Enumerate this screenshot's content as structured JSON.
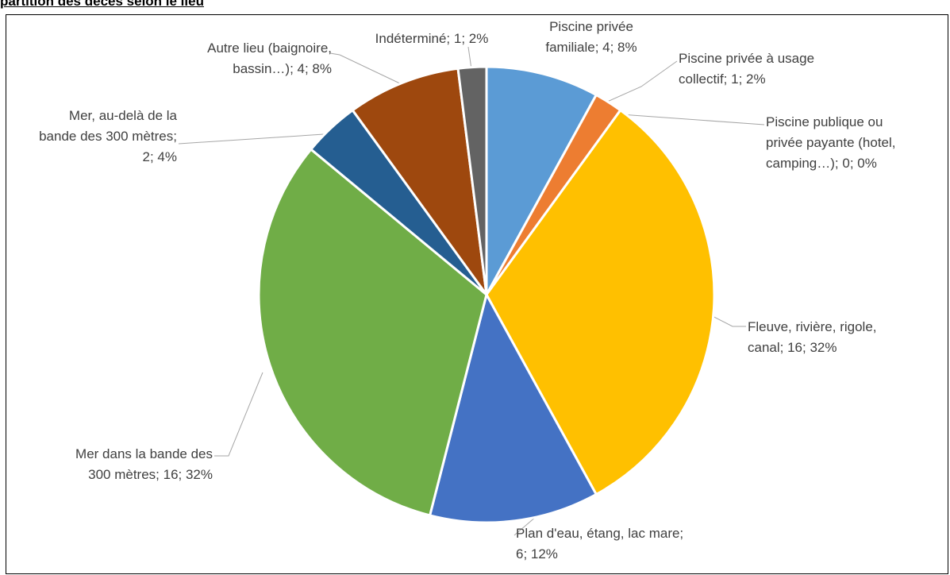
{
  "page_title": "partition des décès selon le lieu",
  "chart_data": {
    "type": "pie",
    "title": "",
    "start_angle_deg": 0,
    "direction": "clockwise",
    "slices": [
      {
        "name": "Piscine privée familiale",
        "value": 4,
        "percent": "8%",
        "color": "#5b9bd5",
        "label_lines": [
          "Piscine privée",
          "familiale; 4; 8%"
        ]
      },
      {
        "name": "Piscine privée à usage collectif",
        "value": 1,
        "percent": "2%",
        "color": "#ed7d31",
        "label_lines": [
          "Piscine privée à usage",
          "collectif; 1; 2%"
        ]
      },
      {
        "name": "Piscine publique ou privée payante (hotel, camping…)",
        "value": 0,
        "percent": "0%",
        "color": "#a5a5a5",
        "label_lines": [
          "Piscine publique ou",
          "privée payante (hotel,",
          "camping…); 0; 0%"
        ]
      },
      {
        "name": "Fleuve, rivière, rigole, canal",
        "value": 16,
        "percent": "32%",
        "color": "#ffc000",
        "label_lines": [
          "Fleuve, rivière, rigole,",
          "canal; 16; 32%"
        ]
      },
      {
        "name": "Plan d'eau, étang, lac mare",
        "value": 6,
        "percent": "12%",
        "color": "#4472c4",
        "label_lines": [
          "Plan d'eau, étang, lac mare;",
          "6; 12%"
        ]
      },
      {
        "name": "Mer dans la bande des 300 mètres",
        "value": 16,
        "percent": "32%",
        "color": "#70ad47",
        "label_lines": [
          "Mer dans la bande des",
          "300 mètres; 16; 32%"
        ]
      },
      {
        "name": "Mer, au-delà de la bande des 300 mètres",
        "value": 2,
        "percent": "4%",
        "color": "#255e91",
        "label_lines": [
          "Mer, au-delà de la",
          "bande des 300 mètres;",
          "2; 4%"
        ]
      },
      {
        "name": "Autre lieu (baignoire, bassin…)",
        "value": 4,
        "percent": "8%",
        "color": "#9e480e",
        "label_lines": [
          "Autre lieu (baignoire,",
          "bassin…); 4; 8%"
        ]
      },
      {
        "name": "Indéterminé",
        "value": 1,
        "percent": "2%",
        "color": "#636363",
        "label_lines": [
          "Indéterminé; 1; 2%"
        ]
      }
    ]
  }
}
